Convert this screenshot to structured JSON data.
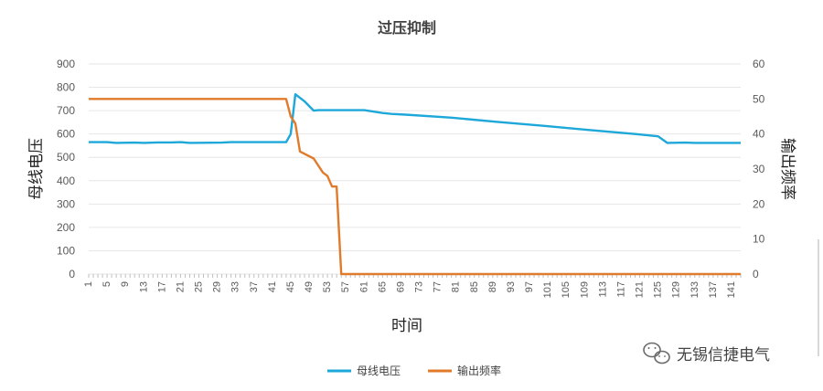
{
  "chart_data": {
    "type": "line",
    "title": "过压抑制",
    "xlabel": "时间",
    "ylabel_left": "母线电压",
    "ylabel_right": "输出频率",
    "x_range": [
      1,
      143
    ],
    "x_tick_labels": [
      "1",
      "5",
      "9",
      "13",
      "17",
      "21",
      "25",
      "29",
      "33",
      "37",
      "41",
      "45",
      "49",
      "53",
      "57",
      "61",
      "65",
      "69",
      "73",
      "77",
      "81",
      "85",
      "89",
      "93",
      "97",
      "101",
      "105",
      "109",
      "113",
      "117",
      "121",
      "125",
      "129",
      "133",
      "137",
      "141"
    ],
    "y_left_range": [
      0,
      900
    ],
    "y_left_ticks": [
      "0",
      "100",
      "200",
      "300",
      "400",
      "500",
      "600",
      "700",
      "800",
      "900"
    ],
    "y_right_range": [
      0,
      60
    ],
    "y_right_ticks": [
      "0",
      "10",
      "20",
      "30",
      "40",
      "50",
      "60"
    ],
    "grid": "horizontal",
    "legend_position": "bottom",
    "series": [
      {
        "name": "母线电压",
        "axis": "left",
        "color": "#1ea7d9",
        "points": [
          [
            1,
            565
          ],
          [
            5,
            565
          ],
          [
            7,
            562
          ],
          [
            11,
            563
          ],
          [
            13,
            562
          ],
          [
            16,
            564
          ],
          [
            19,
            564
          ],
          [
            21,
            565
          ],
          [
            23,
            562
          ],
          [
            30,
            563
          ],
          [
            32,
            565
          ],
          [
            44,
            565
          ],
          [
            45,
            600
          ],
          [
            46,
            770
          ],
          [
            48,
            740
          ],
          [
            50,
            700
          ],
          [
            51,
            702
          ],
          [
            61,
            702
          ],
          [
            65,
            690
          ],
          [
            67,
            686
          ],
          [
            70,
            683
          ],
          [
            80,
            670
          ],
          [
            90,
            652
          ],
          [
            100,
            635
          ],
          [
            110,
            617
          ],
          [
            120,
            600
          ],
          [
            125,
            590
          ],
          [
            127,
            562
          ],
          [
            131,
            563
          ],
          [
            133,
            562
          ],
          [
            143,
            562
          ]
        ]
      },
      {
        "name": "输出频率",
        "axis": "right",
        "color": "#e07b2c",
        "points": [
          [
            1,
            50
          ],
          [
            30,
            50
          ],
          [
            32,
            50
          ],
          [
            44,
            50
          ],
          [
            45,
            45
          ],
          [
            46,
            43
          ],
          [
            47,
            35
          ],
          [
            50,
            33
          ],
          [
            52,
            29
          ],
          [
            53,
            28
          ],
          [
            54,
            25
          ],
          [
            55,
            25
          ],
          [
            56,
            0
          ],
          [
            143,
            0
          ]
        ]
      }
    ]
  },
  "watermark": {
    "icon": "wechat-icon",
    "text": "无锡信捷电气"
  }
}
